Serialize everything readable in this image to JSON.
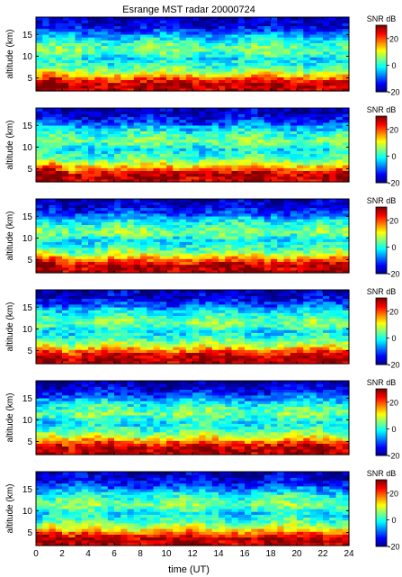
{
  "figure": {
    "title": "Esrange MST radar 20000724",
    "xlabel": "time (UT)",
    "ylabel": "altitude (km)",
    "colorbar_label": "SNR dB"
  },
  "chart_data": {
    "type": "heatmap",
    "panel_count": 6,
    "x_range": [
      0,
      24
    ],
    "x_ticks": [
      0,
      2,
      4,
      6,
      8,
      10,
      12,
      14,
      16,
      18,
      20,
      22,
      24
    ],
    "y_range": [
      2,
      19
    ],
    "y_ticks": [
      5,
      10,
      15
    ],
    "color_range": [
      -20,
      30
    ],
    "color_ticks": [
      -20,
      0,
      20
    ],
    "colormap": [
      "#00007f",
      "#0000ff",
      "#007fff",
      "#00ffff",
      "#7fff7f",
      "#ffff00",
      "#ff7f00",
      "#ff0000",
      "#7f0000"
    ],
    "time_bins": 48,
    "altitude_bins": 26,
    "profile": [
      {
        "altitude_km": 2.5,
        "snr_db": 27
      },
      {
        "altitude_km": 3.5,
        "snr_db": 28
      },
      {
        "altitude_km": 4.5,
        "snr_db": 23
      },
      {
        "altitude_km": 5.5,
        "snr_db": 15
      },
      {
        "altitude_km": 6.5,
        "snr_db": 8
      },
      {
        "altitude_km": 7.5,
        "snr_db": 3
      },
      {
        "altitude_km": 8.5,
        "snr_db": 0
      },
      {
        "altitude_km": 9.5,
        "snr_db": -2
      },
      {
        "altitude_km": 10.5,
        "snr_db": 2
      },
      {
        "altitude_km": 11.5,
        "snr_db": 5
      },
      {
        "altitude_km": 12.5,
        "snr_db": 3
      },
      {
        "altitude_km": 13.5,
        "snr_db": 0
      },
      {
        "altitude_km": 14.5,
        "snr_db": -4
      },
      {
        "altitude_km": 15.5,
        "snr_db": -9
      },
      {
        "altitude_km": 16.5,
        "snr_db": -13
      },
      {
        "altitude_km": 17.5,
        "snr_db": -16
      },
      {
        "altitude_km": 18.5,
        "snr_db": -17
      }
    ]
  }
}
